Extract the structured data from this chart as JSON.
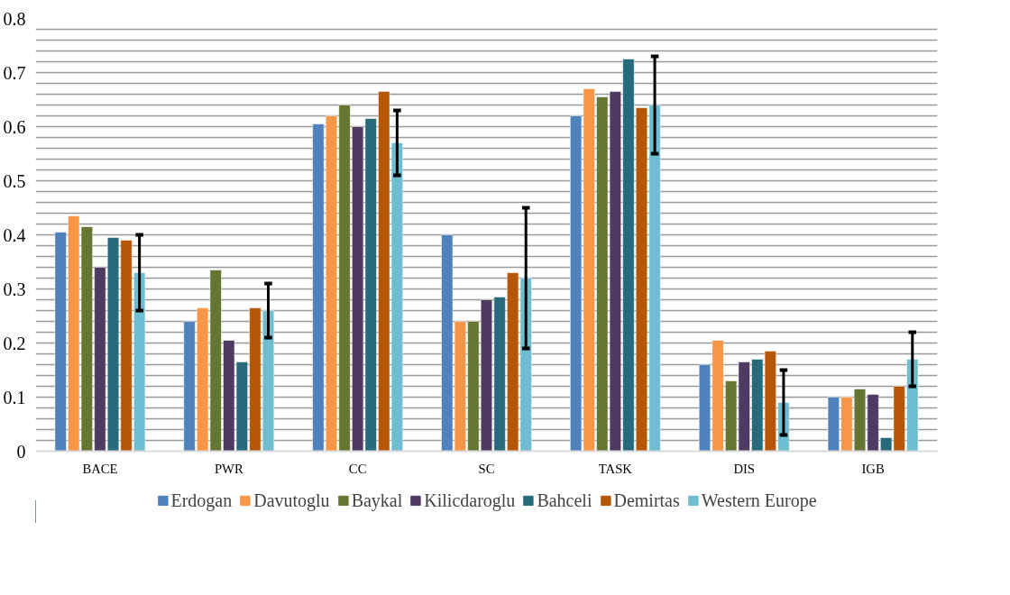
{
  "chart_data": {
    "type": "bar",
    "categories": [
      "BACE",
      "PWR",
      "CC",
      "SC",
      "TASK",
      "DIS",
      "IGB"
    ],
    "series": [
      {
        "name": "Erdogan",
        "color": "#4f81bd",
        "values": [
          0.405,
          0.24,
          0.605,
          0.4,
          0.62,
          0.16,
          0.1
        ]
      },
      {
        "name": "Davutoglu",
        "color": "#f79646",
        "values": [
          0.435,
          0.265,
          0.62,
          0.24,
          0.67,
          0.205,
          0.1
        ]
      },
      {
        "name": "Baykal",
        "color": "#657632",
        "values": [
          0.415,
          0.335,
          0.64,
          0.24,
          0.655,
          0.13,
          0.115
        ]
      },
      {
        "name": "Kilicdaroglu",
        "color": "#4f3b62",
        "values": [
          0.34,
          0.205,
          0.6,
          0.28,
          0.665,
          0.165,
          0.105
        ]
      },
      {
        "name": "Bahceli",
        "color": "#276a7c",
        "values": [
          0.395,
          0.165,
          0.615,
          0.285,
          0.725,
          0.17,
          0.025
        ]
      },
      {
        "name": "Demirtas",
        "color": "#b65708",
        "values": [
          0.39,
          0.265,
          0.665,
          0.33,
          0.635,
          0.185,
          0.12
        ]
      },
      {
        "name": "Western Europe",
        "color": "#6fbdd1",
        "values": [
          0.33,
          0.26,
          0.57,
          0.32,
          0.64,
          0.09,
          0.17
        ],
        "errors": [
          [
            0.26,
            0.4
          ],
          [
            0.21,
            0.31
          ],
          [
            0.51,
            0.63
          ],
          [
            0.19,
            0.45
          ],
          [
            0.55,
            0.73
          ],
          [
            0.03,
            0.15
          ],
          [
            0.12,
            0.22
          ]
        ]
      }
    ],
    "ylim": [
      0,
      0.8
    ],
    "yticks": [
      0,
      {
        "value": 0.02,
        "label": null
      },
      {
        "value": 0.04,
        "label": null
      },
      {
        "value": 0.06,
        "label": null
      },
      {
        "value": 0.08,
        "label": null
      },
      0.1,
      {
        "value": 0.12,
        "label": null
      },
      {
        "value": 0.14,
        "label": null
      },
      {
        "value": 0.16,
        "label": null
      },
      {
        "value": 0.18,
        "label": null
      },
      0.2,
      {
        "value": 0.22,
        "label": null
      },
      {
        "value": 0.24,
        "label": null
      },
      {
        "value": 0.26,
        "label": null
      },
      {
        "value": 0.28,
        "label": null
      },
      0.3,
      {
        "value": 0.32,
        "label": null
      },
      {
        "value": 0.34,
        "label": null
      },
      {
        "value": 0.36,
        "label": null
      },
      {
        "value": 0.38,
        "label": null
      },
      0.4,
      {
        "value": 0.42,
        "label": null
      },
      {
        "value": 0.44,
        "label": null
      },
      {
        "value": 0.46,
        "label": null
      },
      {
        "value": 0.48,
        "label": null
      },
      0.5,
      {
        "value": 0.52,
        "label": null
      },
      {
        "value": 0.54,
        "label": null
      },
      {
        "value": 0.56,
        "label": null
      },
      {
        "value": 0.58,
        "label": null
      },
      0.6,
      {
        "value": 0.62,
        "label": null
      },
      {
        "value": 0.64,
        "label": null
      },
      {
        "value": 0.66,
        "label": null
      },
      {
        "value": 0.68,
        "label": null
      },
      0.7,
      {
        "value": 0.72,
        "label": null
      },
      {
        "value": 0.74,
        "label": null
      },
      {
        "value": 0.76,
        "label": null
      },
      {
        "value": 0.78,
        "label": null
      },
      0.8
    ],
    "grid": "y",
    "legend": "bottom"
  }
}
